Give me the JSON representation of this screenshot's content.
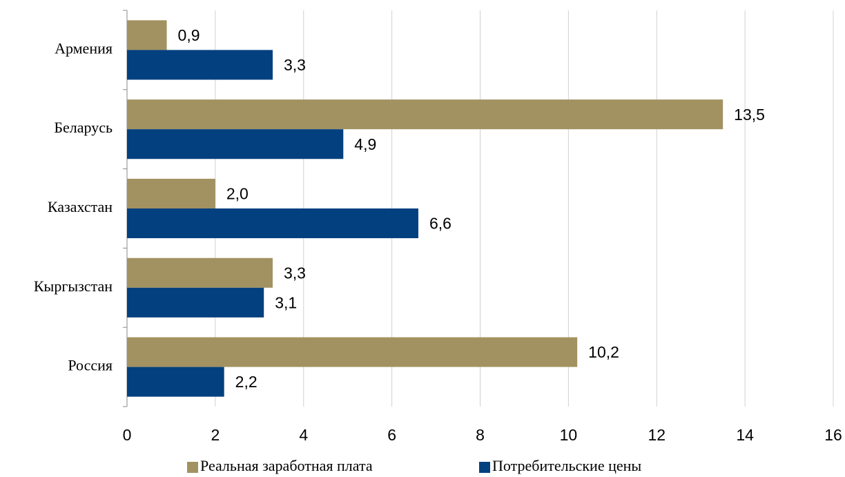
{
  "chart_data": {
    "type": "barh",
    "categories": [
      "Армения",
      "Беларусь",
      "Казахстан",
      "Кыргызстан",
      "Россия"
    ],
    "series": [
      {
        "name": "Реальная заработная плата",
        "color": "#a39261",
        "values": [
          0.9,
          13.5,
          2.0,
          3.3,
          10.2
        ],
        "value_labels": [
          "0,9",
          "13,5",
          "2,0",
          "3,3",
          "10,2"
        ]
      },
      {
        "name": "Потребительские цены",
        "color": "#02407f",
        "values": [
          3.3,
          4.9,
          6.6,
          3.1,
          2.2
        ],
        "value_labels": [
          "3,3",
          "4,9",
          "6,6",
          "3,1",
          "2,2"
        ]
      }
    ],
    "xlim": [
      0,
      16
    ],
    "xticks": [
      0,
      2,
      4,
      6,
      8,
      10,
      12,
      14,
      16
    ],
    "grid": true,
    "legend": "bottom"
  }
}
